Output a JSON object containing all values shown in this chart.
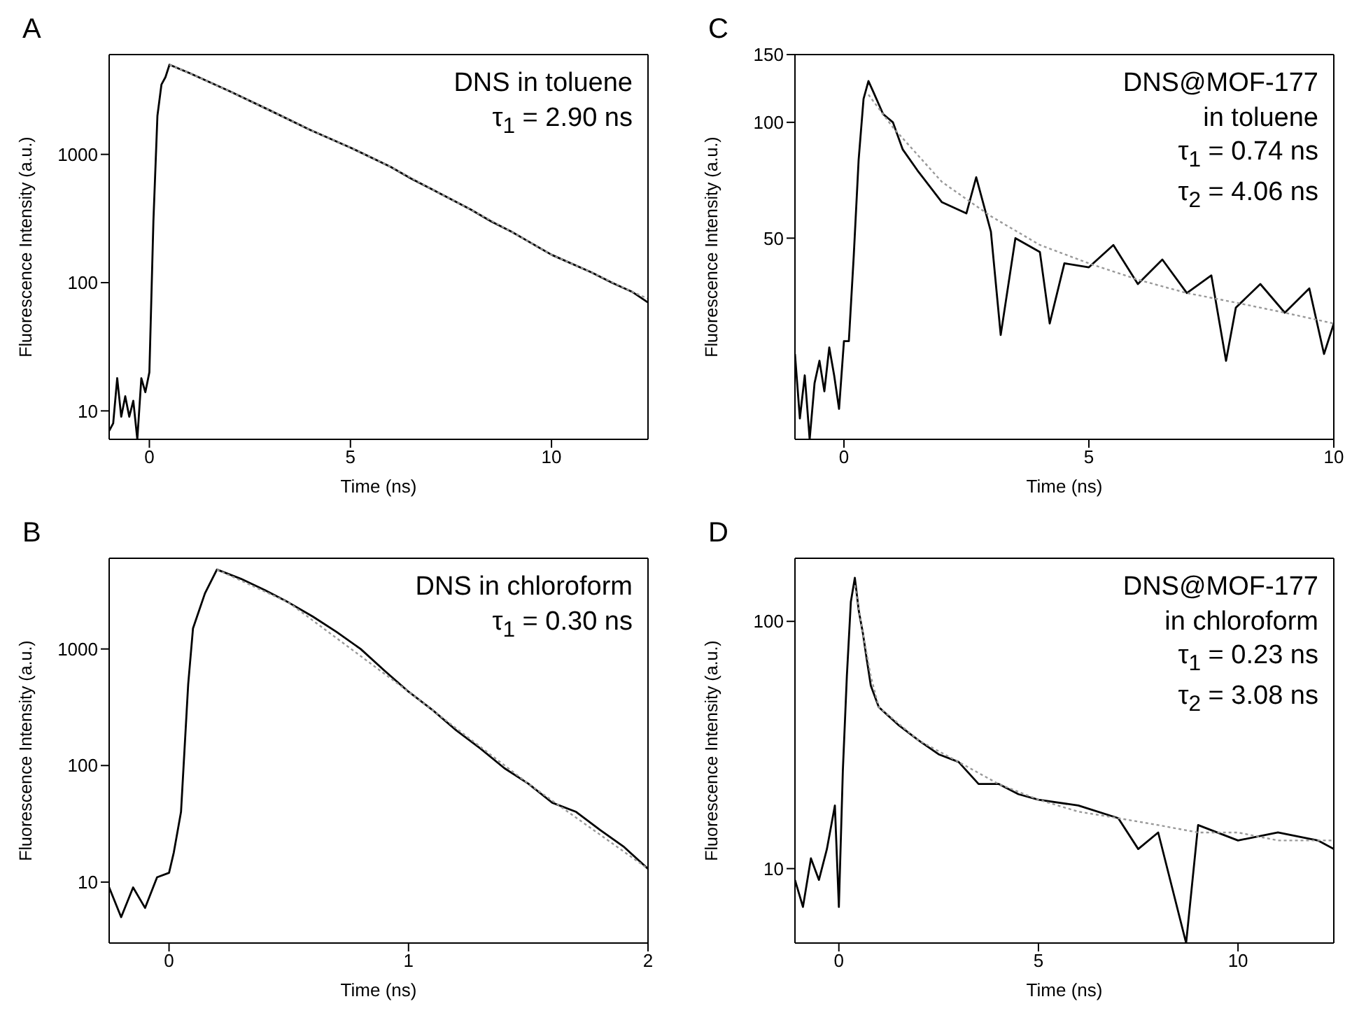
{
  "chart_data": [
    {
      "type": "line",
      "title": "A",
      "xlabel": "Time (ns)",
      "ylabel": "Fluorescence Intensity (a.u.)",
      "log": "y",
      "xlim": [
        -1,
        12.4
      ],
      "xticks": [
        0,
        5,
        10
      ],
      "ylim": [
        6,
        6000
      ],
      "yticks": [
        10,
        100,
        1000
      ],
      "annotations": [
        "DNS in toluene",
        "τ$_{1}$ = 2.90 ns"
      ],
      "series": [
        {
          "color": "#000000",
          "line_style": "solid",
          "x": [
            -1,
            -0.9,
            -0.8,
            -0.7,
            -0.6,
            -0.5,
            -0.4,
            -0.3,
            -0.2,
            -0.1,
            0,
            0.1,
            0.2,
            0.3,
            0.4,
            0.5,
            1,
            2,
            3,
            4,
            5,
            6,
            6.5,
            7,
            8,
            8.5,
            9,
            10,
            11,
            11.5,
            12,
            12.4
          ],
          "values": [
            7,
            8,
            18,
            9,
            13,
            9,
            12,
            6,
            18,
            14,
            20,
            300,
            2000,
            3500,
            4000,
            5000,
            4300,
            3100,
            2200,
            1550,
            1130,
            800,
            650,
            540,
            370,
            300,
            250,
            165,
            120,
            100,
            85,
            70
          ]
        },
        {
          "color": "#999999",
          "line_style": "dotted",
          "x": [
            0.5,
            1,
            2,
            3,
            4,
            5,
            6,
            7,
            8,
            9,
            10,
            11,
            12,
            12.4
          ],
          "values": [
            5000,
            4300,
            3100,
            2200,
            1550,
            1130,
            800,
            540,
            370,
            250,
            165,
            120,
            85,
            75
          ]
        }
      ]
    },
    {
      "type": "line",
      "title": "C",
      "xlabel": "Time (ns)",
      "ylabel": "Fluorescence Intensity (a.u.)",
      "log": "y",
      "xlim": [
        -1,
        10
      ],
      "xticks": [
        0,
        5,
        10
      ],
      "ylim": [
        15,
        150
      ],
      "yticks": [
        50,
        100,
        150
      ],
      "annotations": [
        "DNS@MOF-177",
        "in toluene",
        "τ$_{1}$ = 0.74 ns",
        "τ$_{2}$ = 4.06 ns"
      ],
      "series": [
        {
          "color": "#000000",
          "line_style": "solid",
          "x": [
            -1,
            -0.9,
            -0.8,
            -0.7,
            -0.6,
            -0.5,
            -0.4,
            -0.3,
            -0.2,
            -0.1,
            0,
            0.1,
            0.2,
            0.3,
            0.4,
            0.5,
            0.6,
            0.8,
            1,
            1.2,
            1.5,
            2,
            2.5,
            2.7,
            3,
            3.2,
            3.5,
            4,
            4.2,
            4.5,
            5,
            5.5,
            6,
            6.5,
            7,
            7.5,
            7.8,
            8,
            8.5,
            9,
            9.5,
            9.8,
            10
          ],
          "values": [
            25,
            17,
            22,
            15,
            21,
            24,
            20,
            26,
            22,
            18,
            27,
            27,
            45,
            80,
            115,
            128,
            120,
            105,
            100,
            85,
            75,
            62,
            58,
            72,
            52,
            28,
            50,
            46,
            30,
            43,
            42,
            48,
            38,
            44,
            36,
            40,
            24,
            33,
            38,
            32,
            37,
            25,
            30
          ]
        },
        {
          "color": "#999999",
          "line_style": "dotted",
          "x": [
            0.5,
            1,
            2,
            3,
            4,
            5,
            6,
            7,
            8,
            9,
            10
          ],
          "values": [
            118,
            97,
            70,
            57,
            48,
            43,
            39,
            36,
            34,
            32,
            30
          ]
        }
      ]
    },
    {
      "type": "line",
      "title": "B",
      "xlabel": "Time (ns)",
      "ylabel": "Fluorescence Intensity (a.u.)",
      "log": "y",
      "xlim": [
        -0.25,
        2
      ],
      "xticks": [
        0,
        1,
        2
      ],
      "ylim": [
        3,
        6000
      ],
      "yticks": [
        10,
        100,
        1000
      ],
      "annotations": [
        "DNS in chloroform",
        "τ$_{1}$ = 0.30 ns"
      ],
      "series": [
        {
          "color": "#000000",
          "line_style": "solid",
          "x": [
            -0.25,
            -0.2,
            -0.15,
            -0.1,
            -0.05,
            0,
            0.02,
            0.05,
            0.08,
            0.1,
            0.15,
            0.2,
            0.3,
            0.4,
            0.5,
            0.6,
            0.7,
            0.8,
            0.9,
            1,
            1.1,
            1.2,
            1.3,
            1.4,
            1.5,
            1.6,
            1.7,
            1.8,
            1.9,
            2
          ],
          "values": [
            9,
            5,
            9,
            6,
            11,
            12,
            18,
            40,
            500,
            1500,
            3000,
            4800,
            4000,
            3200,
            2500,
            1900,
            1400,
            1000,
            650,
            430,
            300,
            200,
            140,
            95,
            70,
            48,
            40,
            28,
            20,
            13
          ]
        },
        {
          "color": "#999999",
          "line_style": "dotted",
          "x": [
            0.2,
            0.5,
            1,
            1.5,
            2
          ],
          "values": [
            4800,
            2500,
            430,
            70,
            13
          ]
        }
      ]
    },
    {
      "type": "line",
      "title": "D",
      "xlabel": "Time (ns)",
      "ylabel": "Fluorescence Intensity (a.u.)",
      "log": "y",
      "xlim": [
        -1.1,
        12.4
      ],
      "xticks": [
        0,
        5,
        10
      ],
      "ylim": [
        5,
        180
      ],
      "yticks": [
        10,
        100
      ],
      "annotations": [
        "DNS@MOF-177",
        "in chloroform",
        "τ$_{1}$ = 0.23 ns",
        "τ$_{2}$ = 3.08 ns"
      ],
      "series": [
        {
          "color": "#000000",
          "line_style": "solid",
          "x": [
            -1.1,
            -0.9,
            -0.7,
            -0.5,
            -0.3,
            -0.1,
            0,
            0.1,
            0.2,
            0.3,
            0.4,
            0.5,
            0.6,
            0.7,
            0.8,
            1,
            1.5,
            2,
            2.5,
            3,
            3.5,
            4,
            4.5,
            5,
            6,
            7,
            7.5,
            8,
            8.7,
            9,
            10,
            11,
            12,
            12.4
          ],
          "values": [
            9,
            7,
            11,
            9,
            12,
            18,
            7,
            25,
            60,
            120,
            150,
            110,
            90,
            70,
            55,
            45,
            38,
            33,
            29,
            27,
            22,
            22,
            20,
            19,
            18,
            16,
            12,
            14,
            5,
            15,
            13,
            14,
            13,
            12
          ]
        },
        {
          "color": "#999999",
          "line_style": "dotted",
          "x": [
            0.4,
            0.6,
            0.8,
            1,
            2,
            3,
            4,
            5,
            6,
            7,
            8,
            9,
            10,
            11,
            12.4
          ],
          "values": [
            140,
            90,
            60,
            45,
            33,
            27,
            22,
            19,
            17,
            16,
            15,
            14,
            14,
            13,
            13
          ]
        }
      ]
    }
  ]
}
